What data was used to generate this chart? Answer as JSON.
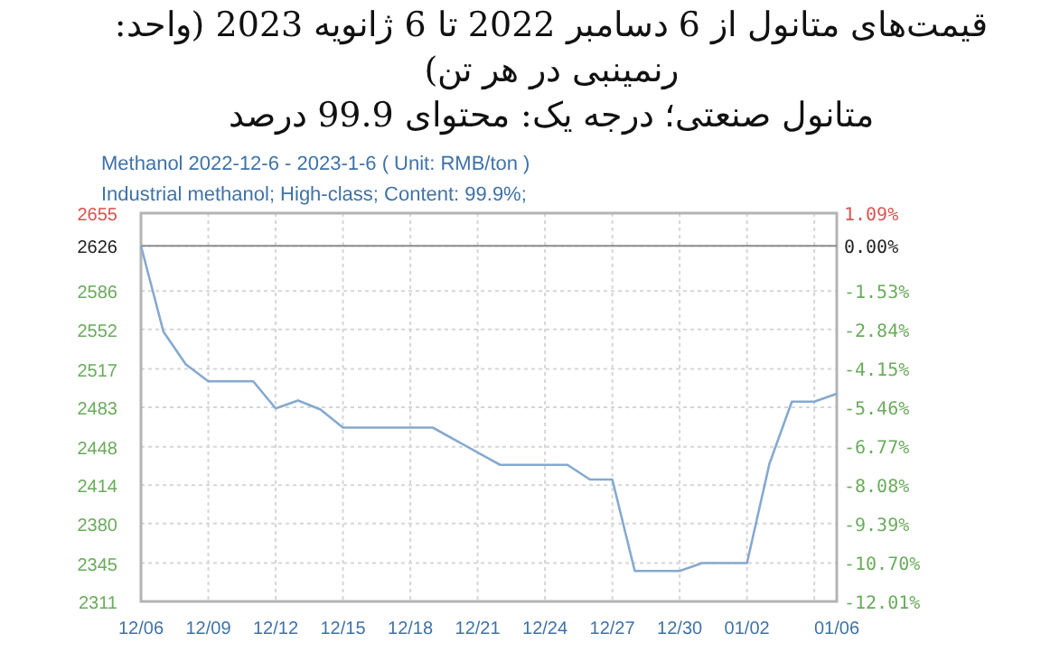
{
  "chart_data": {
    "type": "line",
    "title": "قیمت‌های متانول از 6 دسامبر 2022 تا 6 ژانویه 2023 (واحد: رنمینبی در هر تن)",
    "subtitle": "متانول صنعتی؛ درجه یک: محتوای 99.9 درصد",
    "annotations": [
      "Methanol 2022-12-6 - 2023-1-6     ( Unit: RMB/ton )",
      "Industrial methanol; High-class; Content: 99.9%;"
    ],
    "x": [
      "2022-12-06",
      "2022-12-07",
      "2022-12-08",
      "2022-12-09",
      "2022-12-11",
      "2022-12-12",
      "2022-12-13",
      "2022-12-14",
      "2022-12-15",
      "2022-12-19",
      "2022-12-22",
      "2022-12-25",
      "2022-12-26",
      "2022-12-27",
      "2022-12-28",
      "2022-12-30",
      "2022-12-31",
      "2023-01-02",
      "2023-01-03",
      "2023-01-04",
      "2023-01-05",
      "2023-01-06"
    ],
    "series": [
      {
        "color": "#86a9d0",
        "values": [
          2626,
          2550,
          2521,
          2506,
          2506,
          2482,
          2489,
          2481,
          2465,
          2465,
          2432,
          2432,
          2419,
          2419,
          2338,
          2338,
          2345,
          2345,
          2433,
          2488,
          2488,
          2495
        ]
      }
    ],
    "xlim": [
      "2022-12-06",
      "2023-01-06"
    ],
    "xticks": [
      {
        "value": "2022-12-06",
        "label": "12/06"
      },
      {
        "value": "2022-12-09",
        "label": "12/09"
      },
      {
        "value": "2022-12-12",
        "label": "12/12"
      },
      {
        "value": "2022-12-15",
        "label": "12/15"
      },
      {
        "value": "2022-12-18",
        "label": "12/18"
      },
      {
        "value": "2022-12-21",
        "label": "12/21"
      },
      {
        "value": "2022-12-24",
        "label": "12/24"
      },
      {
        "value": "2022-12-27",
        "label": "12/27"
      },
      {
        "value": "2022-12-30",
        "label": "12/30"
      },
      {
        "value": "2023-01-02",
        "label": "01/02"
      },
      {
        "value": "2023-01-05",
        "label": null
      },
      {
        "value": "2023-01-06",
        "label": "01/06"
      }
    ],
    "ylim": [
      2311,
      2655
    ],
    "yticks": [
      2311,
      2345,
      2380,
      2414,
      2448,
      2483,
      2517,
      2552,
      2586,
      2626,
      2655
    ],
    "y2lim": [
      -12.01,
      1.09
    ],
    "y2ticks": [
      {
        "value": -12.01,
        "label": "-12.01%"
      },
      {
        "value": -10.7,
        "label": "-10.70%"
      },
      {
        "value": -9.39,
        "label": "-9.39%"
      },
      {
        "value": -8.08,
        "label": "-8.08%"
      },
      {
        "value": -6.77,
        "label": "-6.77%"
      },
      {
        "value": -5.46,
        "label": "-5.46%"
      },
      {
        "value": -4.15,
        "label": "-4.15%"
      },
      {
        "value": -2.84,
        "label": "-2.84%"
      },
      {
        "value": -1.53,
        "label": "-1.53%"
      },
      {
        "value": 0,
        "label": "0.00%"
      },
      {
        "value": 1.09,
        "label": "1.09%"
      }
    ],
    "ref_lines": [
      {
        "axis": "y",
        "value": 2626,
        "color": "#8c8c8c"
      }
    ],
    "grid": true
  }
}
